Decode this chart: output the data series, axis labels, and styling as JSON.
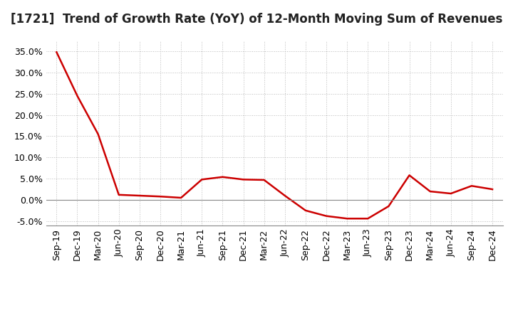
{
  "title": "[1721]  Trend of Growth Rate (YoY) of 12-Month Moving Sum of Revenues",
  "x_labels": [
    "Sep-19",
    "Dec-19",
    "Mar-20",
    "Jun-20",
    "Sep-20",
    "Dec-20",
    "Mar-21",
    "Jun-21",
    "Sep-21",
    "Dec-21",
    "Mar-22",
    "Jun-22",
    "Sep-22",
    "Dec-22",
    "Mar-23",
    "Jun-23",
    "Sep-23",
    "Dec-23",
    "Mar-24",
    "Jun-24",
    "Sep-24",
    "Dec-24"
  ],
  "y_values": [
    0.348,
    0.245,
    0.155,
    0.012,
    0.01,
    0.008,
    0.005,
    0.048,
    0.054,
    0.048,
    0.047,
    0.01,
    -0.025,
    -0.038,
    -0.044,
    -0.044,
    -0.015,
    0.058,
    0.02,
    0.015,
    0.033,
    0.025
  ],
  "line_color": "#cc0000",
  "line_width": 1.8,
  "background_color": "#ffffff",
  "plot_bg_color": "#ffffff",
  "grid_color": "#bbbbbb",
  "ylim": [
    -0.06,
    0.375
  ],
  "yticks": [
    -0.05,
    0.0,
    0.05,
    0.1,
    0.15,
    0.2,
    0.25,
    0.3,
    0.35
  ],
  "title_fontsize": 12,
  "tick_fontsize": 9,
  "zero_line_color": "#888888",
  "spine_color": "#888888"
}
